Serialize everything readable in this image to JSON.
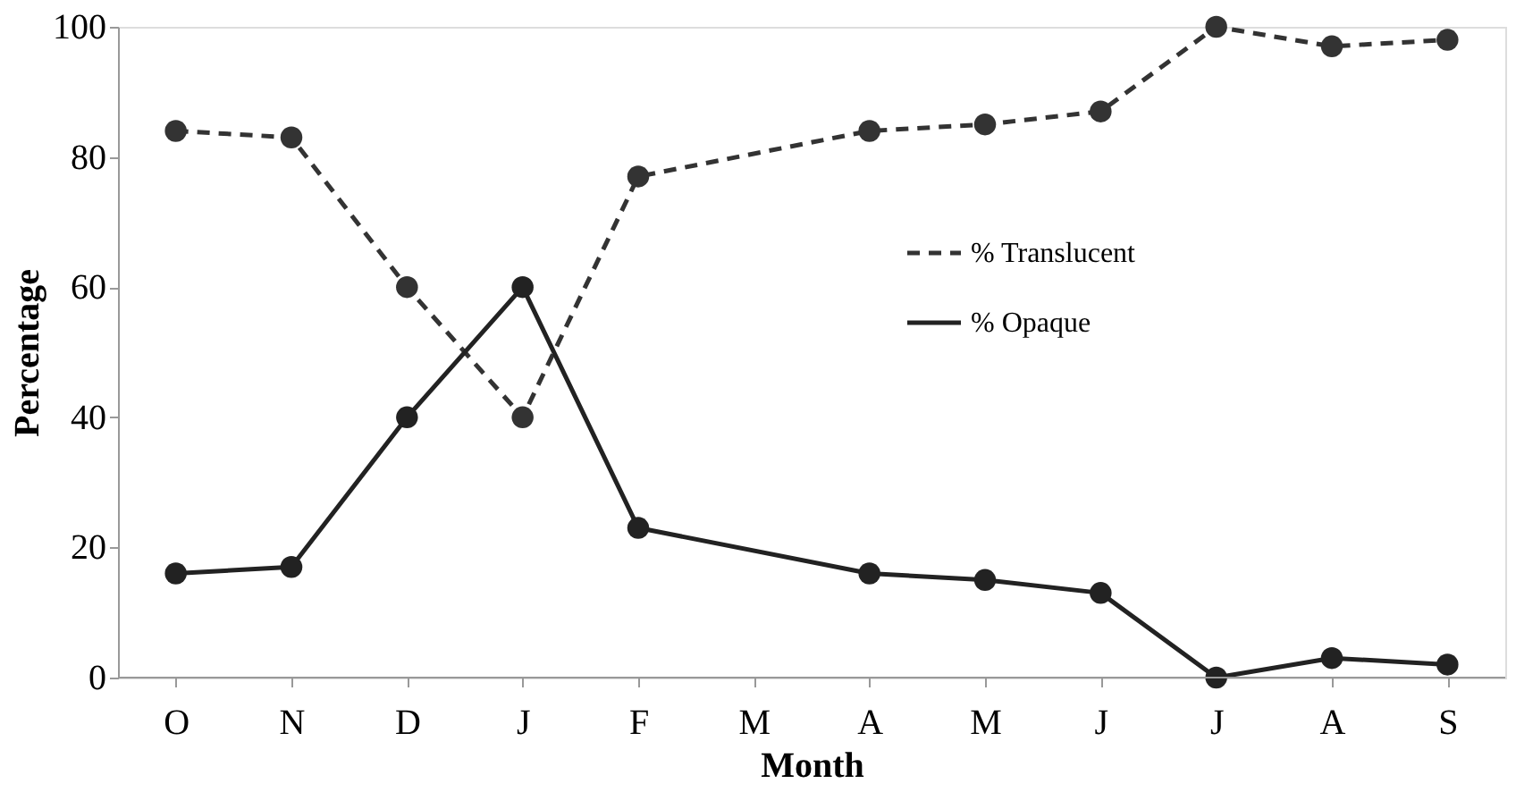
{
  "chart_data": {
    "type": "line",
    "xlabel": "Month",
    "ylabel": "Percentage",
    "categories": [
      "O",
      "N",
      "D",
      "J",
      "F",
      "M",
      "A",
      "M",
      "J",
      "J",
      "A",
      "S"
    ],
    "series": [
      {
        "name": "% Translucent",
        "color": "#333333",
        "line_style": "dashed",
        "values": [
          84,
          83,
          60,
          40,
          77,
          null,
          84,
          85,
          87,
          100,
          97,
          98
        ]
      },
      {
        "name": "% Opaque",
        "color": "#222222",
        "line_style": "solid",
        "values": [
          16,
          17,
          40,
          60,
          23,
          null,
          16,
          15,
          13,
          0,
          3,
          2
        ]
      }
    ],
    "ylim": [
      0,
      100
    ],
    "yticks": [
      0,
      20,
      40,
      60,
      80,
      100
    ],
    "grid": false,
    "legend": "right",
    "marker": "circle"
  }
}
